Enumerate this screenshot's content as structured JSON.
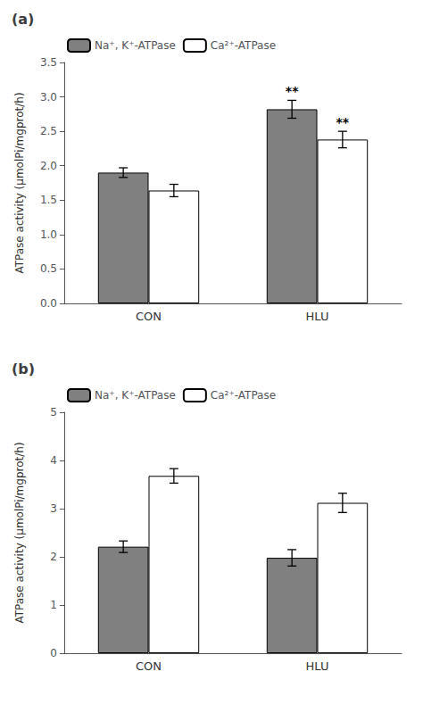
{
  "chart_data": [
    {
      "type": "bar",
      "title": "(a)",
      "categories": [
        "CON",
        "HLU"
      ],
      "series": [
        {
          "name": "Na⁺, K⁺-ATPase",
          "color": "#808080",
          "values": [
            1.9,
            2.82
          ],
          "errors": [
            0.07,
            0.13
          ]
        },
        {
          "name": "Ca²⁺-ATPase",
          "color": "#ffffff",
          "values": [
            1.64,
            2.38
          ],
          "errors": [
            0.09,
            0.12
          ]
        }
      ],
      "ylabel": "ATPase activity (μmolPi/mgprot/h)",
      "ylim": [
        0,
        3.5
      ],
      "yticks": [
        {
          "value": 0,
          "label": "0.0"
        },
        0.5,
        {
          "value": 1,
          "label": "1.0"
        },
        1.5,
        {
          "value": 2,
          "label": "2.0"
        },
        2.5,
        {
          "value": 3,
          "label": "3.0"
        },
        3.5
      ],
      "annotations": [
        {
          "text": "**",
          "category": "HLU",
          "series": "Na⁺, K⁺-ATPase"
        },
        {
          "text": "**",
          "category": "HLU",
          "series": "Ca²⁺-ATPase"
        }
      ],
      "legend": "upper left",
      "grid": false
    },
    {
      "type": "bar",
      "title": "(b)",
      "categories": [
        "CON",
        "HLU"
      ],
      "series": [
        {
          "name": "Na⁺, K⁺-ATPase",
          "color": "#808080",
          "values": [
            2.21,
            1.98
          ],
          "errors": [
            0.12,
            0.17
          ]
        },
        {
          "name": "Ca²⁺-ATPase",
          "color": "#ffffff",
          "values": [
            3.68,
            3.12
          ],
          "errors": [
            0.15,
            0.2
          ]
        }
      ],
      "ylabel": "ATPase activity (μmolPi/mgprot/h)",
      "ylim": [
        0,
        5
      ],
      "yticks": [
        0,
        1,
        2,
        3,
        4,
        5
      ],
      "legend": "upper left",
      "grid": false
    }
  ]
}
